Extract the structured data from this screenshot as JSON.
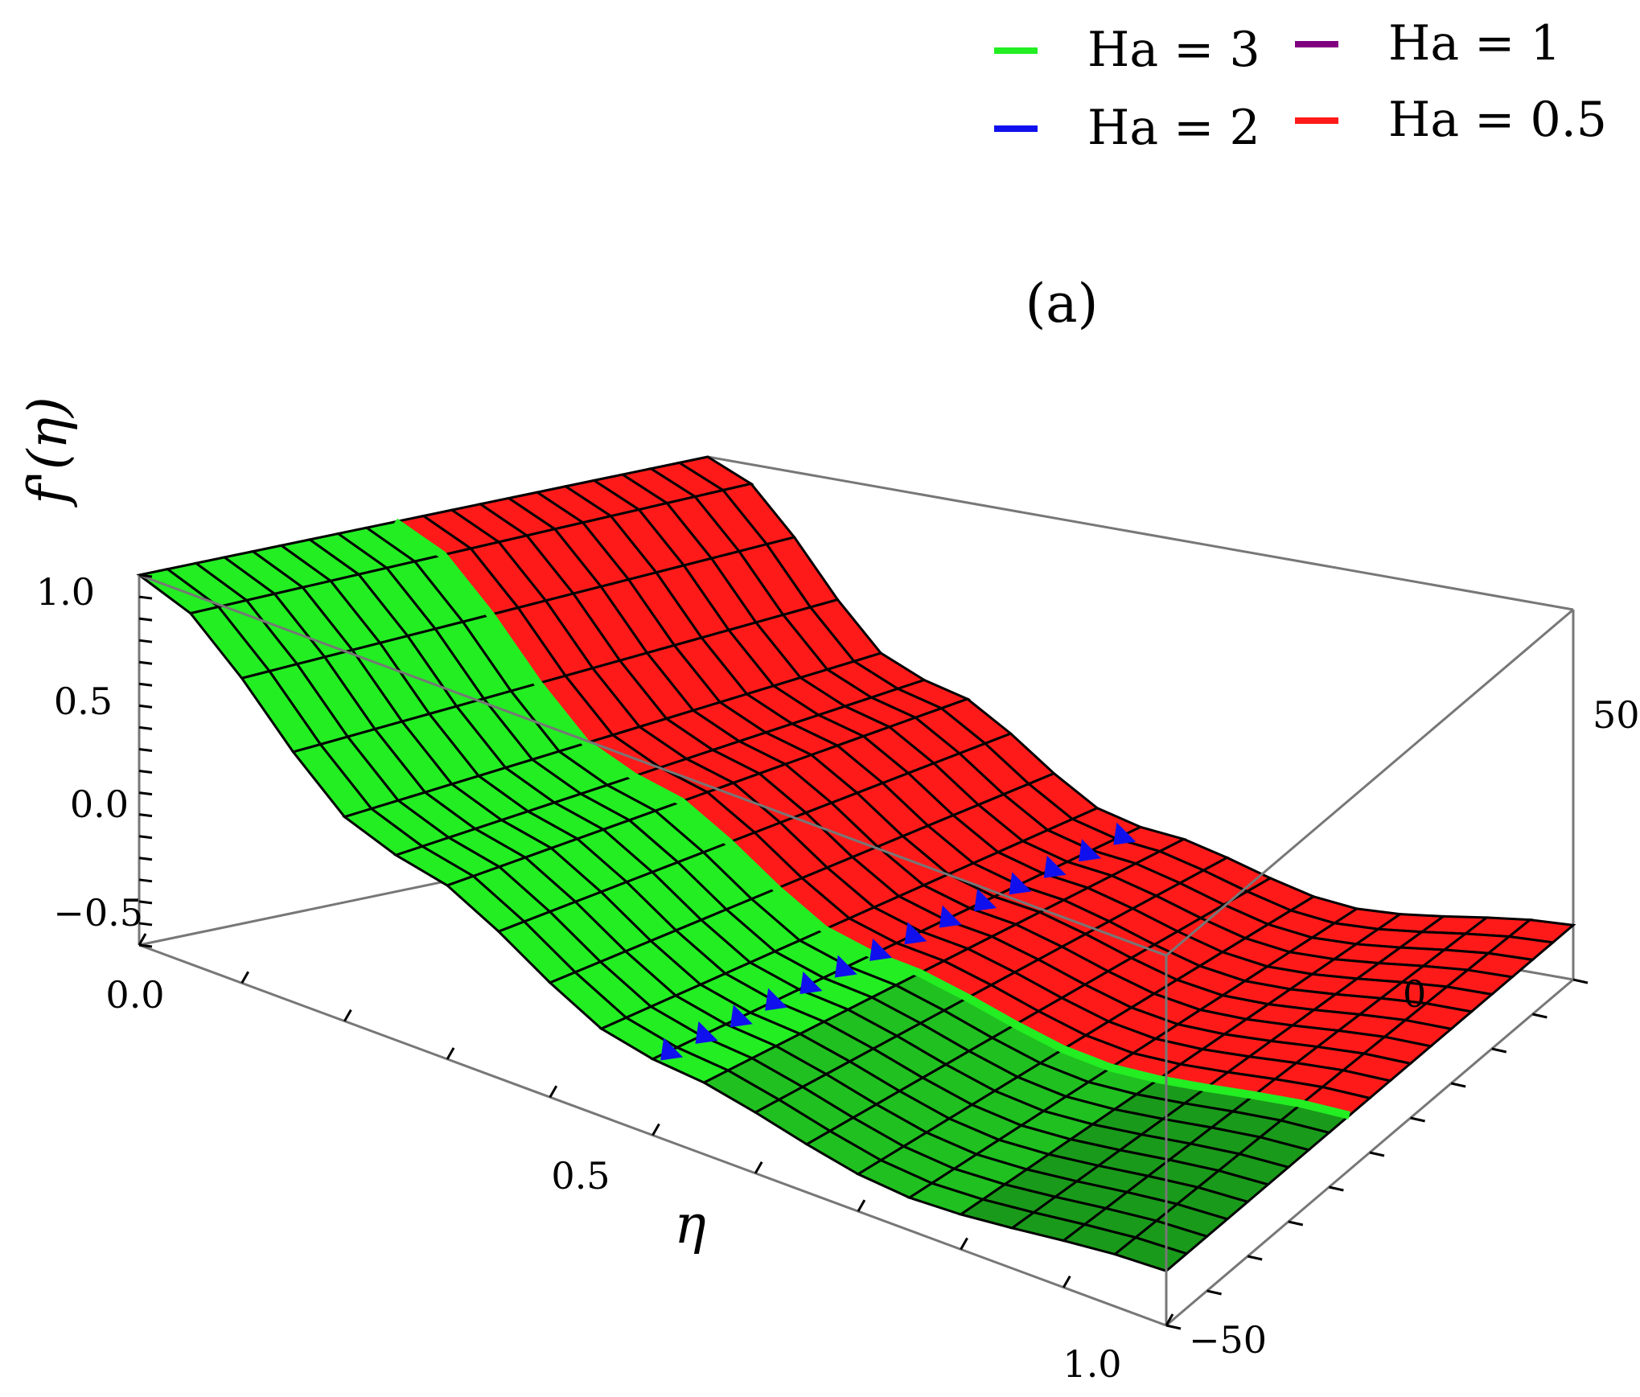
{
  "chart_data": {
    "type": "surface3d",
    "title": "",
    "panel_label": "(a)",
    "xlabel": "η",
    "ylabel": "",
    "zlabel": "f'(η)",
    "x_ticks": [
      "0.0",
      "0.5",
      "1.0"
    ],
    "y_ticks": [
      "50",
      "0",
      "−50"
    ],
    "z_ticks": [
      "1.0",
      "0.5",
      "0.0",
      "−0.5"
    ],
    "xlim": [
      0,
      1
    ],
    "ylim": [
      -50,
      50
    ],
    "zlim": [
      -0.7,
      1.0
    ],
    "legend_position": "top-right",
    "series": [
      {
        "name": "Ha = 3",
        "color": "#22ee22",
        "eta": [
          0,
          0.25,
          0.5,
          0.75,
          1.0
        ],
        "f_prime": [
          1.0,
          0.15,
          -0.35,
          -0.55,
          -0.45
        ]
      },
      {
        "name": "Ha = 2",
        "color": "#1010ee",
        "eta": [
          0,
          0.25,
          0.5,
          0.75,
          1.0
        ],
        "f_prime": [
          1.0,
          0.14,
          -0.36,
          -0.56,
          -0.46
        ]
      },
      {
        "name": "Ha = 1",
        "color": "#800080",
        "eta": [
          0,
          0.25,
          0.5,
          0.75,
          1.0
        ],
        "f_prime": [
          1.0,
          0.13,
          -0.37,
          -0.57,
          -0.47
        ]
      },
      {
        "name": "Ha = 0.5",
        "color": "#ff1a1a",
        "eta": [
          0,
          0.25,
          0.5,
          0.75,
          1.0
        ],
        "f_prime": [
          1.0,
          0.12,
          -0.38,
          -0.58,
          -0.48
        ]
      }
    ]
  }
}
